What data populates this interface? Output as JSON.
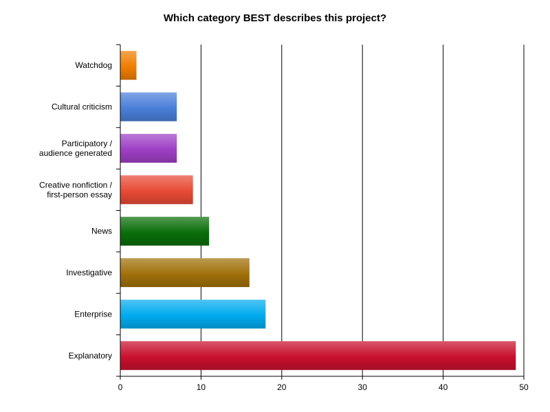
{
  "chart_data": {
    "type": "bar",
    "orientation": "horizontal",
    "title": "Which category BEST describes this project?",
    "xlabel": "",
    "ylabel": "",
    "xlim": [
      0,
      50
    ],
    "x_ticks": [
      0,
      10,
      20,
      30,
      40,
      50
    ],
    "grid": "vertical",
    "categories": [
      "Watchdog",
      "Cultural criticism",
      "Participatory / audience generated",
      "Creative nonfiction / first-person essay",
      "News",
      "Investigative",
      "Enterprise",
      "Explanatory"
    ],
    "category_lines": [
      [
        "Watchdog"
      ],
      [
        "Cultural criticism"
      ],
      [
        "Participatory /",
        "audience generated"
      ],
      [
        "Creative nonfiction /",
        "first-person essay"
      ],
      [
        "News"
      ],
      [
        "Investigative"
      ],
      [
        "Enterprise"
      ],
      [
        "Explanatory"
      ]
    ],
    "values": [
      2,
      7,
      7,
      9,
      11,
      16,
      18,
      49
    ],
    "colors": [
      "#f07d00",
      "#4a7fd9",
      "#9e3fc5",
      "#e84a35",
      "#0a6e0a",
      "#a0700a",
      "#00aaee",
      "#c8102e"
    ]
  }
}
